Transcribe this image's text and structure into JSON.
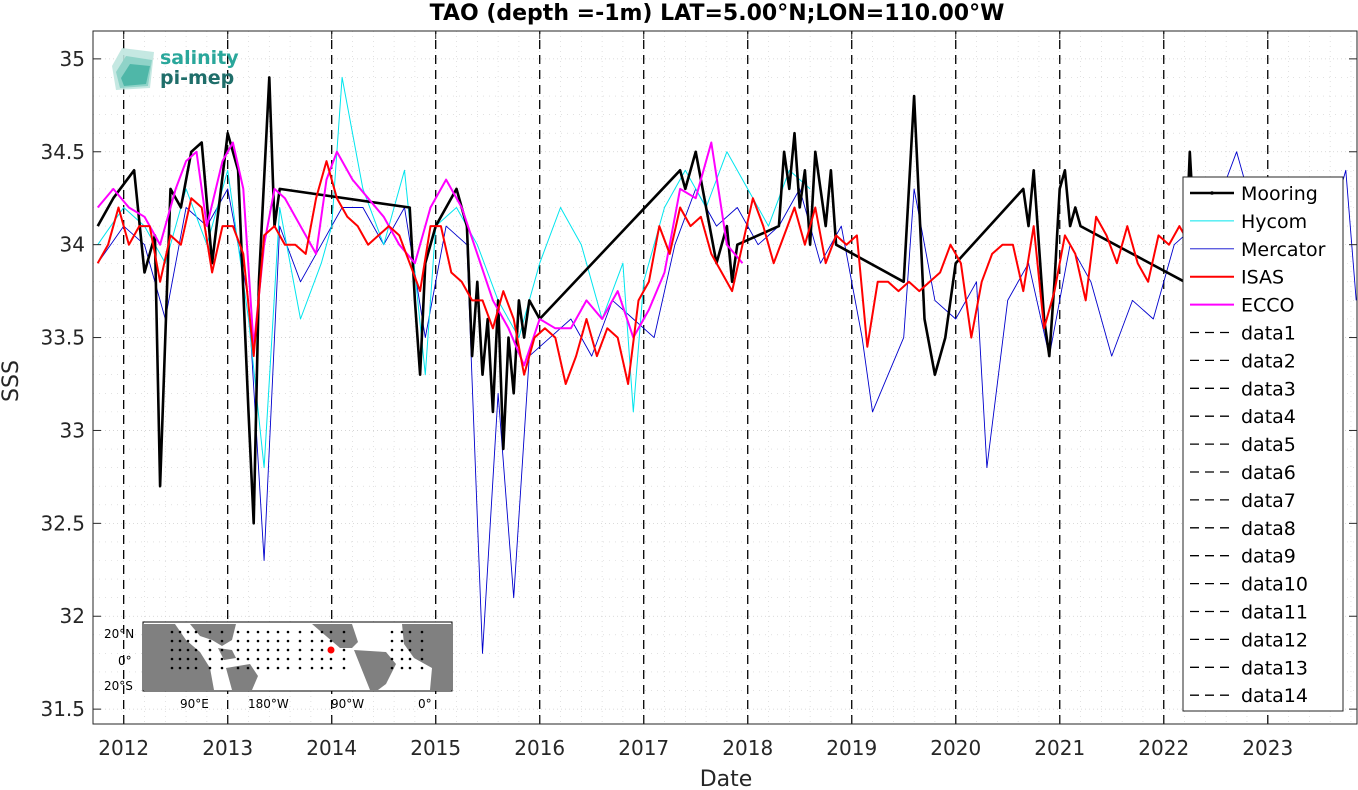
{
  "logo": {
    "line1": "salinity",
    "line2": "pi-mep",
    "color1": "#2aa79b",
    "color2": "#1f6e6a"
  },
  "chart_data": {
    "type": "line",
    "title": "TAO (depth =-1m) LAT=5.00°N;LON=110.00°W",
    "xlabel": "Date",
    "ylabel": "SSS",
    "xlim": [
      "2011-09-15",
      "2023-11-10"
    ],
    "ylim": [
      31.42,
      35.15
    ],
    "yticks": [
      31.5,
      32,
      32.5,
      33,
      33.5,
      34,
      34.5,
      35
    ],
    "ytick_labels": [
      "31.5",
      "32",
      "32.5",
      "33",
      "33.5",
      "34",
      "34.5",
      "35"
    ],
    "xtick_labels": [
      "2012",
      "2013",
      "2014",
      "2015",
      "2016",
      "2017",
      "2018",
      "2019",
      "2020",
      "2021",
      "2022",
      "2023"
    ],
    "grid": true,
    "legend_location": "right",
    "series": [
      {
        "name": "Mooring",
        "color": "#000000",
        "x": [
          2011.75,
          2011.9,
          2012.1,
          2012.2,
          2012.3,
          2012.35,
          2012.45,
          2012.55,
          2012.65,
          2012.75,
          2012.85,
          2013.0,
          2013.1,
          2013.2,
          2013.25,
          2013.3,
          2013.4,
          2013.45,
          2013.5,
          2014.75,
          2014.8,
          2014.85,
          2014.9,
          2015.0,
          2015.1,
          2015.2,
          2015.3,
          2015.35,
          2015.4,
          2015.45,
          2015.5,
          2015.55,
          2015.6,
          2015.65,
          2015.7,
          2015.75,
          2015.8,
          2015.85,
          2015.9,
          2016.0,
          2017.35,
          2017.4,
          2017.5,
          2017.6,
          2017.7,
          2017.8,
          2017.85,
          2017.9,
          2018.3,
          2018.35,
          2018.4,
          2018.45,
          2018.5,
          2018.55,
          2018.6,
          2018.65,
          2018.7,
          2018.75,
          2018.8,
          2018.85,
          2019.5,
          2019.6,
          2019.7,
          2019.8,
          2019.9,
          2020.0,
          2020.65,
          2020.7,
          2020.75,
          2020.8,
          2020.85,
          2020.9,
          2020.95,
          2021.0,
          2021.05,
          2021.1,
          2021.15,
          2021.2,
          2022.2,
          2022.25,
          2022.3
        ],
        "y": [
          34.1,
          34.25,
          34.4,
          33.85,
          34.05,
          32.7,
          34.3,
          34.2,
          34.5,
          34.55,
          33.9,
          34.6,
          34.4,
          33.1,
          32.5,
          33.8,
          34.9,
          34.1,
          34.3,
          34.2,
          33.7,
          33.3,
          33.9,
          34.1,
          34.2,
          34.3,
          34.1,
          33.4,
          33.8,
          33.3,
          33.6,
          33.1,
          33.7,
          32.9,
          33.5,
          33.2,
          33.7,
          33.5,
          33.7,
          33.6,
          34.4,
          34.3,
          34.5,
          34.2,
          33.9,
          34.1,
          33.8,
          34.0,
          34.1,
          34.5,
          34.3,
          34.6,
          34.2,
          34.4,
          34.0,
          34.5,
          34.3,
          34.1,
          34.4,
          34.0,
          33.8,
          34.8,
          33.6,
          33.3,
          33.5,
          33.9,
          34.3,
          34.1,
          34.4,
          34.0,
          33.6,
          33.4,
          33.8,
          34.3,
          34.4,
          34.1,
          34.2,
          34.1,
          33.8,
          34.5,
          34.0
        ]
      },
      {
        "name": "Hycom",
        "color": "#00e5ee",
        "x": [
          2011.75,
          2012.0,
          2012.2,
          2012.4,
          2012.6,
          2012.8,
          2013.0,
          2013.2,
          2013.35,
          2013.5,
          2013.7,
          2013.9,
          2014.0,
          2014.1,
          2014.3,
          2014.5,
          2014.7,
          2014.9,
          2015.0,
          2015.2,
          2015.4,
          2015.6,
          2015.8,
          2016.0,
          2016.2,
          2016.4,
          2016.6,
          2016.8,
          2016.9,
          2017.0,
          2017.2,
          2017.4,
          2017.6,
          2017.8,
          2018.0,
          2018.2,
          2018.4,
          2018.6
        ],
        "y": [
          34.0,
          34.2,
          34.1,
          33.9,
          34.3,
          34.0,
          34.4,
          33.6,
          32.8,
          34.2,
          33.6,
          33.9,
          34.1,
          34.9,
          34.3,
          34.0,
          34.4,
          33.3,
          34.1,
          34.2,
          34.0,
          33.7,
          33.5,
          33.9,
          34.2,
          34.0,
          33.6,
          33.9,
          33.1,
          33.8,
          34.2,
          34.4,
          34.2,
          34.5,
          34.3,
          34.1,
          34.4,
          34.3
        ]
      },
      {
        "name": "Mercator",
        "color": "#0000cd",
        "x": [
          2011.75,
          2012.0,
          2012.2,
          2012.4,
          2012.6,
          2012.8,
          2013.0,
          2013.2,
          2013.35,
          2013.5,
          2013.7,
          2013.9,
          2014.1,
          2014.3,
          2014.5,
          2014.7,
          2014.9,
          2015.1,
          2015.3,
          2015.45,
          2015.6,
          2015.75,
          2015.9,
          2016.1,
          2016.3,
          2016.5,
          2016.7,
          2016.9,
          2017.1,
          2017.3,
          2017.5,
          2017.7,
          2017.9,
          2018.1,
          2018.3,
          2018.5,
          2018.7,
          2018.9,
          2019.1,
          2019.2,
          2019.35,
          2019.5,
          2019.6,
          2019.8,
          2020.0,
          2020.2,
          2020.3,
          2020.5,
          2020.7,
          2020.9,
          2021.1,
          2021.3,
          2021.5,
          2021.7,
          2021.9,
          2022.1,
          2022.3,
          2022.5,
          2022.7,
          2022.8,
          2022.9,
          2023.0,
          2023.2,
          2023.4,
          2023.6,
          2023.75,
          2023.85
        ],
        "y": [
          33.9,
          34.1,
          34.0,
          33.6,
          34.2,
          34.1,
          34.3,
          33.7,
          32.3,
          34.1,
          33.8,
          34.0,
          34.2,
          34.2,
          34.0,
          34.2,
          33.5,
          34.1,
          34.0,
          31.8,
          33.2,
          32.1,
          33.4,
          33.5,
          33.6,
          33.4,
          33.7,
          33.6,
          33.5,
          34.0,
          34.3,
          34.1,
          34.2,
          34.0,
          34.1,
          34.3,
          33.9,
          34.1,
          33.5,
          33.1,
          33.3,
          33.5,
          34.3,
          33.7,
          33.6,
          33.8,
          32.8,
          33.7,
          33.9,
          33.4,
          34.0,
          33.8,
          33.4,
          33.7,
          33.6,
          34.0,
          34.1,
          34.2,
          34.5,
          34.3,
          34.1,
          34.0,
          34.0,
          34.2,
          34.1,
          34.4,
          33.7
        ]
      },
      {
        "name": "ISAS",
        "color": "#ff0000",
        "x": [
          2011.75,
          2011.85,
          2011.95,
          2012.05,
          2012.15,
          2012.25,
          2012.35,
          2012.45,
          2012.55,
          2012.65,
          2012.75,
          2012.85,
          2012.95,
          2013.05,
          2013.15,
          2013.25,
          2013.35,
          2013.45,
          2013.55,
          2013.65,
          2013.75,
          2013.85,
          2013.95,
          2014.05,
          2014.15,
          2014.25,
          2014.35,
          2014.45,
          2014.55,
          2014.65,
          2014.75,
          2014.85,
          2014.95,
          2015.05,
          2015.15,
          2015.25,
          2015.35,
          2015.45,
          2015.55,
          2015.65,
          2015.75,
          2015.85,
          2015.95,
          2016.05,
          2016.15,
          2016.25,
          2016.35,
          2016.45,
          2016.55,
          2016.65,
          2016.75,
          2016.85,
          2016.95,
          2017.05,
          2017.15,
          2017.25,
          2017.35,
          2017.45,
          2017.55,
          2017.65,
          2017.75,
          2017.85,
          2017.95,
          2018.05,
          2018.15,
          2018.25,
          2018.35,
          2018.45,
          2018.55,
          2018.65,
          2018.75,
          2018.85,
          2018.95,
          2019.05,
          2019.15,
          2019.25,
          2019.35,
          2019.45,
          2019.55,
          2019.65,
          2019.75,
          2019.85,
          2019.95,
          2020.05,
          2020.15,
          2020.25,
          2020.35,
          2020.45,
          2020.55,
          2020.65,
          2020.75,
          2020.85,
          2020.95,
          2021.05,
          2021.15,
          2021.25,
          2021.35,
          2021.45,
          2021.55,
          2021.65,
          2021.75,
          2021.85,
          2021.95,
          2022.05,
          2022.15,
          2022.2
        ],
        "y": [
          33.9,
          34.0,
          34.2,
          34.0,
          34.1,
          34.1,
          33.8,
          34.05,
          34.0,
          34.25,
          34.2,
          33.85,
          34.1,
          34.1,
          33.95,
          33.4,
          34.05,
          34.1,
          34.0,
          34.0,
          33.95,
          34.25,
          34.45,
          34.25,
          34.15,
          34.1,
          34.0,
          34.05,
          34.1,
          34.05,
          33.9,
          33.75,
          34.1,
          34.1,
          33.85,
          33.8,
          33.7,
          33.7,
          33.55,
          33.75,
          33.6,
          33.3,
          33.5,
          33.55,
          33.5,
          33.25,
          33.4,
          33.6,
          33.4,
          33.55,
          33.5,
          33.25,
          33.7,
          33.8,
          34.1,
          33.95,
          34.2,
          34.1,
          34.15,
          33.95,
          33.85,
          33.75,
          34.0,
          34.25,
          34.1,
          33.9,
          34.05,
          34.2,
          34.0,
          34.2,
          33.9,
          34.05,
          34.0,
          34.05,
          33.45,
          33.8,
          33.8,
          33.75,
          33.8,
          33.75,
          33.8,
          33.85,
          34.0,
          33.9,
          33.5,
          33.8,
          33.95,
          34.0,
          34.0,
          33.75,
          34.1,
          33.55,
          33.75,
          34.05,
          33.95,
          33.7,
          34.15,
          34.05,
          33.9,
          34.1,
          33.9,
          33.8,
          34.05,
          34.0,
          34.1,
          34.05
        ]
      },
      {
        "name": "ECCO",
        "color": "#ff00ff",
        "x": [
          2011.75,
          2011.9,
          2012.05,
          2012.2,
          2012.35,
          2012.5,
          2012.6,
          2012.7,
          2012.8,
          2012.95,
          2013.05,
          2013.15,
          2013.25,
          2013.35,
          2013.45,
          2013.55,
          2013.7,
          2013.85,
          2013.95,
          2014.05,
          2014.2,
          2014.35,
          2014.5,
          2014.65,
          2014.8,
          2014.95,
          2015.1,
          2015.25,
          2015.4,
          2015.55,
          2015.7,
          2015.85,
          2016.0,
          2016.15,
          2016.3,
          2016.45,
          2016.6,
          2016.75,
          2016.9,
          2017.05,
          2017.2,
          2017.35,
          2017.5,
          2017.65,
          2017.8,
          2017.95
        ],
        "y": [
          34.2,
          34.3,
          34.2,
          34.15,
          34.0,
          34.3,
          34.45,
          34.5,
          34.1,
          34.45,
          34.55,
          34.3,
          33.45,
          34.0,
          34.3,
          34.25,
          34.1,
          33.95,
          34.35,
          34.5,
          34.35,
          34.25,
          34.15,
          34.0,
          33.9,
          34.2,
          34.35,
          34.2,
          33.95,
          33.7,
          33.55,
          33.35,
          33.6,
          33.55,
          33.55,
          33.7,
          33.6,
          33.75,
          33.5,
          33.65,
          33.85,
          34.3,
          34.25,
          34.55,
          34.0,
          33.9
        ]
      },
      {
        "name": "data1",
        "color": "#000000",
        "x": [
          2012.0,
          2012.0
        ],
        "y": [
          31.42,
          35.15
        ]
      },
      {
        "name": "data2",
        "color": "#000000",
        "x": [
          2013.0,
          2013.0
        ],
        "y": [
          31.42,
          35.15
        ]
      },
      {
        "name": "data3",
        "color": "#000000",
        "x": [
          2014.0,
          2014.0
        ],
        "y": [
          31.42,
          35.15
        ]
      },
      {
        "name": "data4",
        "color": "#000000",
        "x": [
          2015.0,
          2015.0
        ],
        "y": [
          31.42,
          35.15
        ]
      },
      {
        "name": "data5",
        "color": "#000000",
        "x": [
          2016.0,
          2016.0
        ],
        "y": [
          31.42,
          35.15
        ]
      },
      {
        "name": "data6",
        "color": "#000000",
        "x": [
          2017.0,
          2017.0
        ],
        "y": [
          31.42,
          35.15
        ]
      },
      {
        "name": "data7",
        "color": "#000000",
        "x": [
          2018.0,
          2018.0
        ],
        "y": [
          31.42,
          35.15
        ]
      },
      {
        "name": "data8",
        "color": "#000000",
        "x": [
          2019.0,
          2019.0
        ],
        "y": [
          31.42,
          35.15
        ]
      },
      {
        "name": "data9",
        "color": "#000000",
        "x": [
          2020.0,
          2020.0
        ],
        "y": [
          31.42,
          35.15
        ]
      },
      {
        "name": "data10",
        "color": "#000000",
        "x": [
          2021.0,
          2021.0
        ],
        "y": [
          31.42,
          35.15
        ]
      },
      {
        "name": "data11",
        "color": "#000000",
        "x": [
          2022.0,
          2022.0
        ],
        "y": [
          31.42,
          35.15
        ]
      },
      {
        "name": "data12",
        "color": "#000000",
        "x": [
          2023.0,
          2023.0
        ],
        "y": [
          31.42,
          35.15
        ]
      },
      {
        "name": "data13",
        "color": "#000000",
        "x": [],
        "y": []
      },
      {
        "name": "data14",
        "color": "#000000",
        "x": [],
        "y": []
      }
    ]
  },
  "inset_map": {
    "lat_labels": [
      "20°N",
      "0°",
      "20°S"
    ],
    "lon_labels": [
      "90°E",
      "180°W",
      "90°W",
      "0°"
    ],
    "marker_color": "#ff0000"
  }
}
